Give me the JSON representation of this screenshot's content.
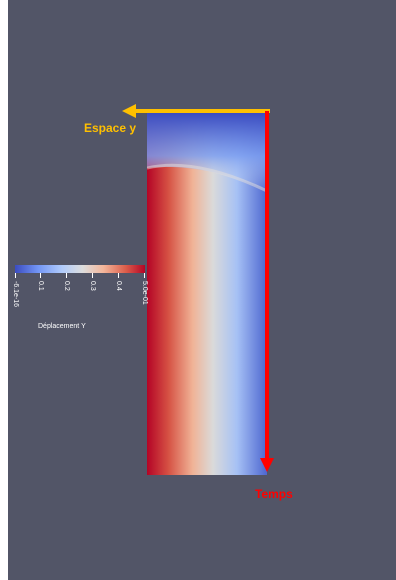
{
  "colors": {
    "background": "#525567",
    "page_margin": "#ffffff",
    "yellow_arrow": "#ffc000",
    "red_arrow": "#ff0000",
    "cold": "#3b4cc0",
    "neutral": "#dddddd",
    "hot": "#b40426"
  },
  "annotations": {
    "space_label": "Espace y",
    "time_label": "Temps"
  },
  "colorbar": {
    "title": "Déplacement Y",
    "colormap": "coolwarm",
    "min": -6.1e-16,
    "max": 0.5,
    "tick_labels": [
      "-6.1e-16",
      "0.1",
      "0.2",
      "0.3",
      "0.4",
      "5.0e-01"
    ]
  },
  "icons": {
    "space_arrow": "arrow-left-icon",
    "time_arrow": "arrow-down-icon"
  }
}
